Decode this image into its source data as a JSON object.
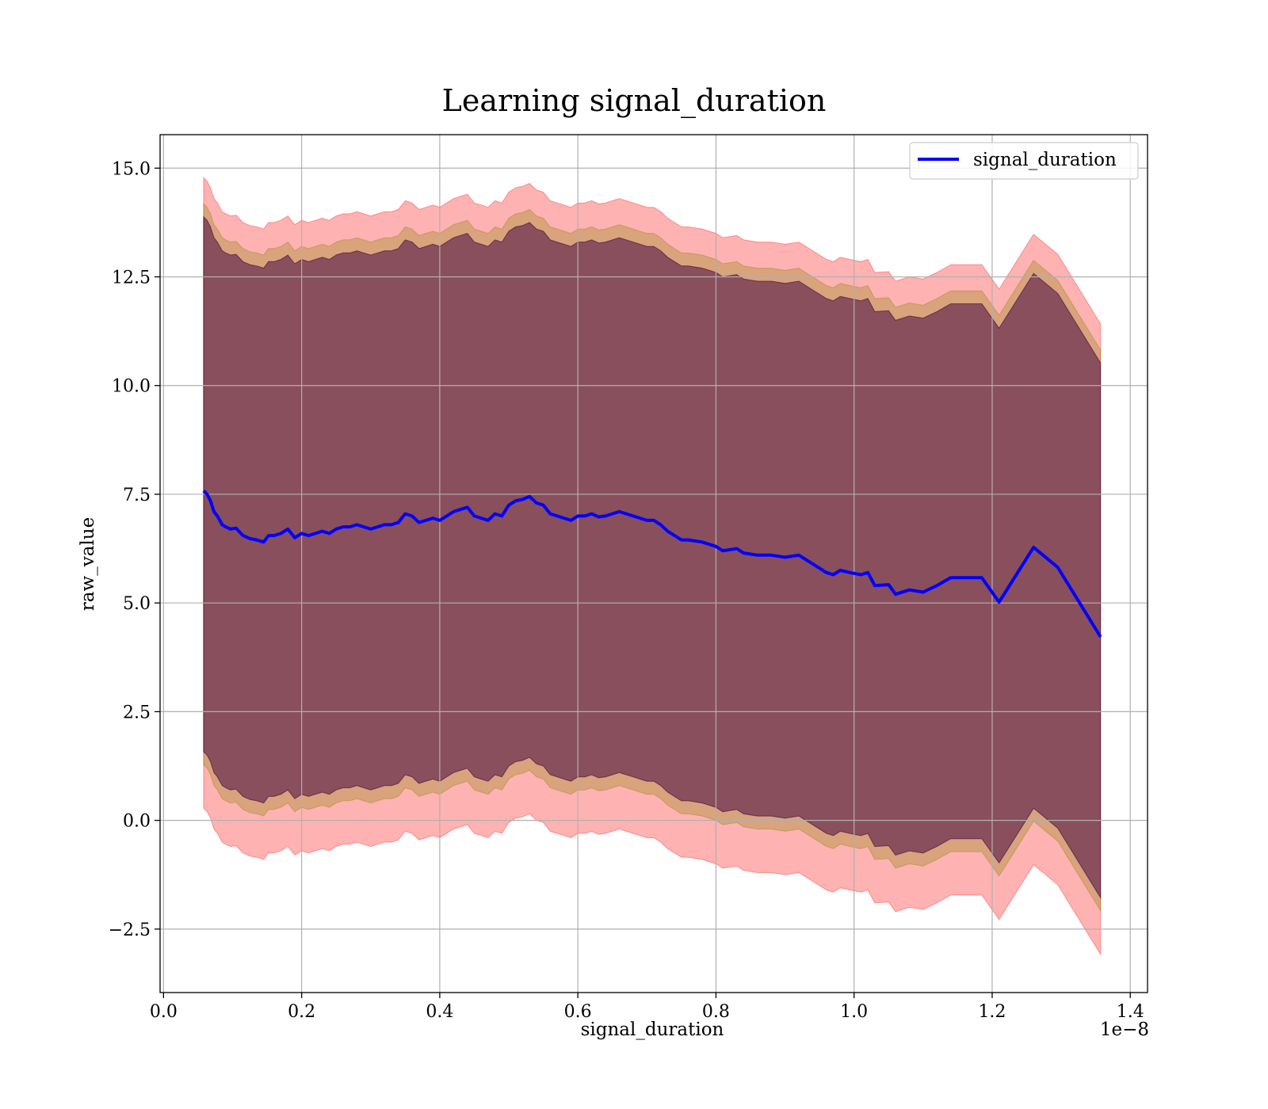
{
  "chart_data": {
    "type": "line",
    "title": "Learning signal_duration",
    "xlabel": "signal_duration",
    "ylabel": "raw_value",
    "x_offset_text": "1e−8",
    "xlim": [
      -0.005,
      1.425
    ],
    "ylim": [
      -3.96,
      15.77
    ],
    "x_ticks": [
      0.0,
      0.2,
      0.4,
      0.6,
      0.8,
      1.0,
      1.2,
      1.4
    ],
    "x_tick_labels": [
      "0.0",
      "0.2",
      "0.4",
      "0.6",
      "0.8",
      "1.0",
      "1.2",
      "1.4"
    ],
    "y_ticks": [
      -2.5,
      0.0,
      2.5,
      5.0,
      7.5,
      10.0,
      12.5,
      15.0
    ],
    "y_tick_labels": [
      "−2.5",
      "0.0",
      "2.5",
      "5.0",
      "7.5",
      "10.0",
      "12.5",
      "15.0"
    ],
    "grid": true,
    "legend_position": "upper right",
    "series": [
      {
        "name": "signal_duration",
        "color": "#0000ff",
        "x": [
          0.058,
          0.063,
          0.068,
          0.073,
          0.078,
          0.085,
          0.09,
          0.097,
          0.105,
          0.115,
          0.125,
          0.135,
          0.145,
          0.152,
          0.16,
          0.17,
          0.18,
          0.19,
          0.2,
          0.21,
          0.22,
          0.23,
          0.24,
          0.25,
          0.26,
          0.27,
          0.28,
          0.29,
          0.3,
          0.31,
          0.32,
          0.33,
          0.34,
          0.35,
          0.36,
          0.37,
          0.38,
          0.39,
          0.4,
          0.41,
          0.42,
          0.43,
          0.44,
          0.45,
          0.46,
          0.47,
          0.48,
          0.49,
          0.5,
          0.51,
          0.52,
          0.53,
          0.54,
          0.55,
          0.56,
          0.57,
          0.58,
          0.59,
          0.6,
          0.61,
          0.62,
          0.63,
          0.64,
          0.65,
          0.66,
          0.67,
          0.68,
          0.69,
          0.7,
          0.71,
          0.72,
          0.73,
          0.74,
          0.75,
          0.76,
          0.78,
          0.8,
          0.81,
          0.83,
          0.84,
          0.86,
          0.88,
          0.9,
          0.92,
          0.94,
          0.96,
          0.97,
          0.98,
          1.0,
          1.01,
          1.02,
          1.03,
          1.05,
          1.06,
          1.08,
          1.1,
          1.12,
          1.14,
          1.16,
          1.185,
          1.21,
          1.26,
          1.295,
          1.357
        ],
        "values": [
          7.58,
          7.5,
          7.35,
          7.1,
          7.0,
          6.8,
          6.75,
          6.7,
          6.72,
          6.55,
          6.48,
          6.45,
          6.4,
          6.55,
          6.55,
          6.6,
          6.7,
          6.5,
          6.6,
          6.55,
          6.6,
          6.65,
          6.6,
          6.7,
          6.75,
          6.75,
          6.8,
          6.75,
          6.7,
          6.75,
          6.8,
          6.8,
          6.85,
          7.05,
          7.0,
          6.85,
          6.9,
          6.95,
          6.9,
          7.0,
          7.1,
          7.15,
          7.2,
          7.0,
          6.95,
          6.9,
          7.05,
          7.0,
          7.25,
          7.35,
          7.38,
          7.45,
          7.3,
          7.25,
          7.05,
          7.0,
          6.95,
          6.9,
          7.0,
          7.0,
          7.05,
          6.98,
          7.0,
          7.05,
          7.1,
          7.05,
          7.0,
          6.95,
          6.9,
          6.9,
          6.8,
          6.65,
          6.55,
          6.45,
          6.45,
          6.4,
          6.3,
          6.2,
          6.25,
          6.15,
          6.1,
          6.1,
          6.05,
          6.1,
          5.9,
          5.7,
          5.65,
          5.75,
          5.68,
          5.65,
          5.7,
          5.4,
          5.42,
          5.2,
          5.3,
          5.25,
          5.4,
          5.58,
          5.58,
          5.58,
          5.02,
          6.28,
          5.82,
          4.22
        ]
      }
    ],
    "bands": [
      {
        "color": "#ff0000",
        "opacity": 0.3,
        "upper_offset": 7.2,
        "lower_offset": 7.3
      },
      {
        "color": "#808000",
        "opacity": 0.3,
        "upper_offset": 6.6,
        "lower_offset": 6.3
      },
      {
        "color": "#400040",
        "opacity": 0.3,
        "upper_offset": 6.3,
        "lower_offset": 6.0
      },
      {
        "color": "#400040",
        "opacity": 0.3,
        "upper_offset": 6.3,
        "lower_offset": 6.0
      }
    ]
  }
}
